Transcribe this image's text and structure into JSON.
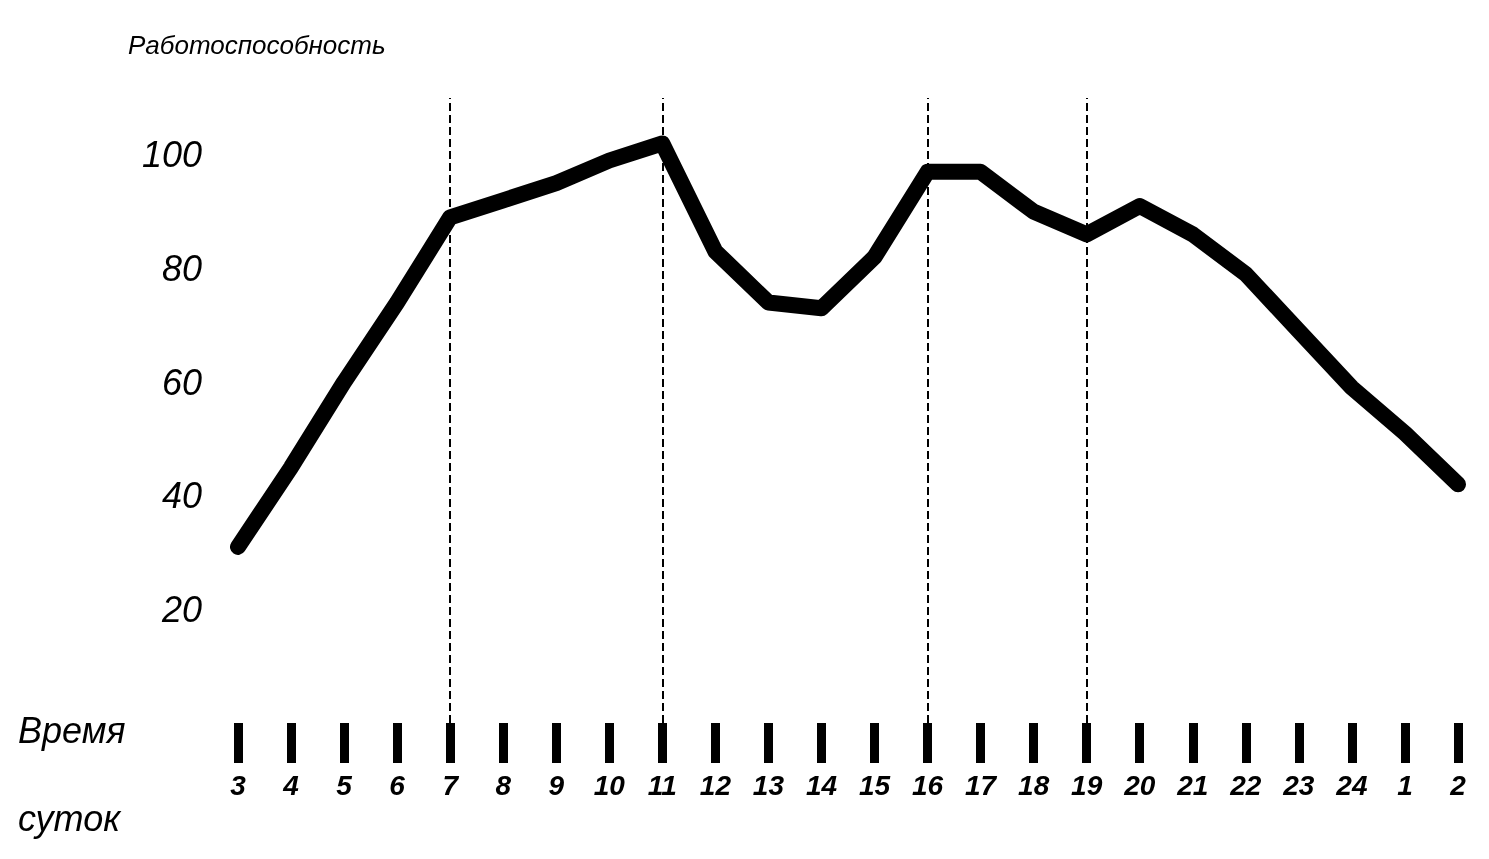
{
  "chart_data": {
    "type": "line",
    "ylabel": "Работоспособность",
    "xlabel": "Время суток",
    "categories": [
      "3",
      "4",
      "5",
      "6",
      "7",
      "8",
      "9",
      "10",
      "11",
      "12",
      "13",
      "14",
      "15",
      "16",
      "17",
      "18",
      "19",
      "20",
      "21",
      "22",
      "23",
      "24",
      "1",
      "2"
    ],
    "values": [
      31,
      45,
      60,
      74,
      89,
      92,
      95,
      99,
      102,
      83,
      74,
      73,
      82,
      97,
      97,
      90,
      86,
      91,
      86,
      79,
      69,
      59,
      51,
      42
    ],
    "color": "#000000",
    "ylim": [
      0,
      110
    ],
    "yticks": [
      20,
      40,
      60,
      80,
      100
    ],
    "ref_lines": [
      {
        "axis": "x",
        "value": "7",
        "line_style": "dashed"
      },
      {
        "axis": "x",
        "value": "11",
        "line_style": "dashed"
      },
      {
        "axis": "x",
        "value": "16",
        "line_style": "dashed"
      },
      {
        "axis": "x",
        "value": "19",
        "line_style": "dashed"
      }
    ],
    "line_style": "solid"
  }
}
